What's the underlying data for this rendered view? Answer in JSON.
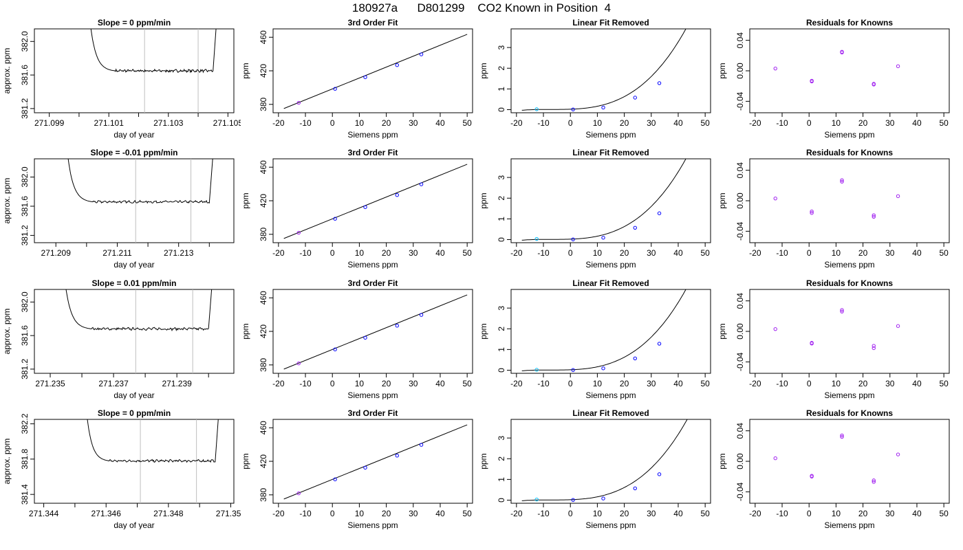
{
  "title": "180927a      D801299    CO2 Known in Position  4",
  "colors": {
    "line": "#000000",
    "vline": "#bebebe",
    "pt_blue": "#0000ff",
    "pt_purple": "#a020f0",
    "pt_cyan": "#00bfff"
  },
  "chart_data": [
    {
      "row": 1,
      "type": "line",
      "title": "Slope =  0  ppm/min",
      "xlabel": "day of year",
      "ylabel": "approx. ppm",
      "xlim": [
        271.0985,
        271.1052
      ],
      "ylim": [
        381.15,
        382.15
      ],
      "xticks": [
        271.099,
        271.1,
        271.101,
        271.102,
        271.103,
        271.104,
        271.105
      ],
      "xticklabels": [
        "271.099",
        "",
        "271.101",
        "",
        "271.103",
        "",
        "271.105"
      ],
      "yticks": [
        381.2,
        381.6,
        382.0
      ],
      "yticklabels": [
        "381.2",
        "381.6",
        "382.0"
      ],
      "vlines": [
        271.1022,
        271.104
      ],
      "trace": {
        "x_start": 271.1004,
        "x_plateau": 271.1012,
        "x_plateau_end": 271.1045,
        "x_end": 271.1047,
        "top": 382.15,
        "level": 381.65,
        "noise": 0.012
      }
    },
    {
      "row": 1,
      "type": "scatter",
      "title": "3rd Order Fit",
      "xlabel": "Siemens ppm",
      "ylabel": "ppm",
      "xlim": [
        -22,
        52
      ],
      "ylim": [
        370,
        470
      ],
      "xticks": [
        -20,
        -10,
        0,
        10,
        20,
        30,
        40,
        50
      ],
      "yticks": [
        380,
        420,
        460
      ],
      "points": {
        "x": [
          -12.5,
          1,
          12.2,
          24,
          33
        ],
        "y": [
          381.8,
          398.5,
          412.4,
          426.8,
          439.6
        ]
      },
      "fit": {
        "x": [
          -18,
          50
        ],
        "y": [
          375,
          463.5
        ]
      }
    },
    {
      "row": 1,
      "type": "scatter",
      "title": "Linear Fit Removed",
      "xlabel": "Siemens ppm",
      "ylabel": "ppm",
      "xlim": [
        -22,
        52
      ],
      "ylim": [
        -0.15,
        3.9
      ],
      "xticks": [
        -20,
        -10,
        0,
        10,
        20,
        30,
        40,
        50
      ],
      "yticks": [
        0,
        1,
        2,
        3
      ],
      "points": {
        "x": [
          -12.5,
          1,
          12.2,
          24,
          33
        ],
        "y": [
          0.02,
          0.01,
          0.1,
          0.58,
          1.28
        ]
      },
      "curve": {
        "x0": -18,
        "x1": 50,
        "c1": 3.14e-05,
        "c0": 0.01,
        "xmin": -7.0
      }
    },
    {
      "row": 1,
      "type": "scatter",
      "title": "Residuals for Knowns",
      "xlabel": "Siemens ppm",
      "ylabel": "ppm",
      "xlim": [
        -22,
        52
      ],
      "ylim": [
        -0.055,
        0.055
      ],
      "xticks": [
        -20,
        -10,
        0,
        10,
        20,
        30,
        40,
        50
      ],
      "yticks": [
        -0.04,
        0.0,
        0.04
      ],
      "yticklabels": [
        "-0.04",
        "0.00",
        "0.04"
      ],
      "points": {
        "x": [
          -12.5,
          1,
          1,
          12.2,
          12.2,
          24,
          24,
          33
        ],
        "y": [
          0.003,
          -0.013,
          -0.014,
          0.025,
          0.024,
          -0.017,
          -0.018,
          0.006
        ]
      }
    },
    {
      "row": 2,
      "type": "line",
      "title": "Slope =  -0.01  ppm/min",
      "xlabel": "day of year",
      "ylabel": "approx. ppm",
      "xlim": [
        271.2083,
        271.2148
      ],
      "ylim": [
        381.1,
        382.25
      ],
      "xticks": [
        271.209,
        271.21,
        271.211,
        271.212,
        271.213,
        271.214
      ],
      "xticklabels": [
        "271.209",
        "",
        "271.211",
        "",
        "271.213",
        ""
      ],
      "yticks": [
        381.2,
        381.6,
        382.0
      ],
      "yticklabels": [
        "381.2",
        "381.6",
        "382.0"
      ],
      "vlines": [
        271.2116,
        271.2134
      ],
      "trace": {
        "x_start": 271.2094,
        "x_plateau": 271.2102,
        "x_plateau_end": 271.214,
        "x_end": 271.2142,
        "top": 382.25,
        "level": 381.66,
        "noise": 0.012
      }
    },
    {
      "row": 2,
      "type": "scatter",
      "title": "3rd Order Fit",
      "xlabel": "Siemens ppm",
      "ylabel": "ppm",
      "xlim": [
        -22,
        52
      ],
      "ylim": [
        370,
        470
      ],
      "xticks": [
        -20,
        -10,
        0,
        10,
        20,
        30,
        40,
        50
      ],
      "yticks": [
        380,
        420,
        460
      ],
      "points": {
        "x": [
          -12.5,
          1,
          12.2,
          24,
          33
        ],
        "y": [
          381.8,
          398.5,
          412.4,
          426.8,
          439.6
        ]
      },
      "fit": {
        "x": [
          -18,
          50
        ],
        "y": [
          375,
          463.5
        ]
      }
    },
    {
      "row": 2,
      "type": "scatter",
      "title": "Linear Fit Removed",
      "xlabel": "Siemens ppm",
      "ylabel": "ppm",
      "xlim": [
        -22,
        52
      ],
      "ylim": [
        -0.15,
        3.9
      ],
      "xticks": [
        -20,
        -10,
        0,
        10,
        20,
        30,
        40,
        50
      ],
      "yticks": [
        0,
        1,
        2,
        3
      ],
      "points": {
        "x": [
          -12.5,
          1,
          12.2,
          24,
          33
        ],
        "y": [
          0.03,
          0.01,
          0.09,
          0.57,
          1.27
        ]
      },
      "curve": {
        "x0": -18,
        "x1": 50,
        "c1": 3.14e-05,
        "c0": 0.01,
        "xmin": -7.0
      }
    },
    {
      "row": 2,
      "type": "scatter",
      "title": "Residuals for Knowns",
      "xlabel": "Siemens ppm",
      "ylabel": "ppm",
      "xlim": [
        -22,
        52
      ],
      "ylim": [
        -0.055,
        0.055
      ],
      "xticks": [
        -20,
        -10,
        0,
        10,
        20,
        30,
        40,
        50
      ],
      "yticks": [
        -0.04,
        0.0,
        0.04
      ],
      "yticklabels": [
        "-0.04",
        "0.00",
        "0.04"
      ],
      "points": {
        "x": [
          -12.5,
          1,
          1,
          12.2,
          12.2,
          24,
          24,
          33
        ],
        "y": [
          0.003,
          -0.014,
          -0.016,
          0.027,
          0.025,
          -0.019,
          -0.021,
          0.006
        ]
      }
    },
    {
      "row": 3,
      "type": "line",
      "title": "Slope =  0.01  ppm/min",
      "xlabel": "day of year",
      "ylabel": "approx. ppm",
      "xlim": [
        271.2345,
        271.2408
      ],
      "ylim": [
        381.15,
        382.15
      ],
      "xticks": [
        271.235,
        271.236,
        271.237,
        271.238,
        271.239,
        271.24
      ],
      "xticklabels": [
        "271.235",
        "",
        "271.237",
        "",
        "271.239",
        ""
      ],
      "yticks": [
        381.2,
        381.6,
        382.0
      ],
      "yticklabels": [
        "381.2",
        "381.6",
        "382.0"
      ],
      "vlines": [
        271.2377,
        271.2395
      ],
      "trace": {
        "x_start": 271.2355,
        "x_plateau": 271.2363,
        "x_plateau_end": 271.24,
        "x_end": 271.2402,
        "top": 382.15,
        "level": 381.68,
        "noise": 0.012
      }
    },
    {
      "row": 3,
      "type": "scatter",
      "title": "3rd Order Fit",
      "xlabel": "Siemens ppm",
      "ylabel": "ppm",
      "xlim": [
        -22,
        52
      ],
      "ylim": [
        370,
        470
      ],
      "xticks": [
        -20,
        -10,
        0,
        10,
        20,
        30,
        40,
        50
      ],
      "yticks": [
        380,
        420,
        460
      ],
      "points": {
        "x": [
          -12.5,
          1,
          12.2,
          24,
          33
        ],
        "y": [
          381.8,
          398.5,
          412.4,
          426.8,
          439.6
        ]
      },
      "fit": {
        "x": [
          -18,
          50
        ],
        "y": [
          375,
          463.5
        ]
      }
    },
    {
      "row": 3,
      "type": "scatter",
      "title": "Linear Fit Removed",
      "xlabel": "Siemens ppm",
      "ylabel": "ppm",
      "xlim": [
        -22,
        52
      ],
      "ylim": [
        -0.15,
        3.9
      ],
      "xticks": [
        -20,
        -10,
        0,
        10,
        20,
        30,
        40,
        50
      ],
      "yticks": [
        0,
        1,
        2,
        3
      ],
      "points": {
        "x": [
          -12.5,
          1,
          12.2,
          24,
          33
        ],
        "y": [
          0.02,
          0.01,
          0.09,
          0.57,
          1.28
        ]
      },
      "curve": {
        "x0": -18,
        "x1": 50,
        "c1": 3.14e-05,
        "c0": 0.01,
        "xmin": -7.0
      }
    },
    {
      "row": 3,
      "type": "scatter",
      "title": "Residuals for Knowns",
      "xlabel": "Siemens ppm",
      "ylabel": "ppm",
      "xlim": [
        -22,
        52
      ],
      "ylim": [
        -0.055,
        0.055
      ],
      "xticks": [
        -20,
        -10,
        0,
        10,
        20,
        30,
        40,
        50
      ],
      "yticks": [
        -0.04,
        0.0,
        0.04
      ],
      "yticklabels": [
        "-0.04",
        "0.00",
        "0.04"
      ],
      "points": {
        "x": [
          -12.5,
          1,
          1,
          12.2,
          12.2,
          24,
          24,
          33
        ],
        "y": [
          0.003,
          -0.015,
          -0.016,
          0.028,
          0.026,
          -0.019,
          -0.022,
          0.007
        ]
      }
    },
    {
      "row": 4,
      "type": "line",
      "title": "Slope =  0  ppm/min",
      "xlabel": "day of year",
      "ylabel": "approx. ppm",
      "xlim": [
        271.3437,
        271.3501
      ],
      "ylim": [
        381.3,
        382.25
      ],
      "xticks": [
        271.344,
        271.345,
        271.346,
        271.347,
        271.348,
        271.349,
        271.35
      ],
      "xticklabels": [
        "271.344",
        "",
        "271.346",
        "",
        "271.348",
        "",
        "271.350"
      ],
      "yticks": [
        381.4,
        381.8,
        382.2
      ],
      "yticklabels": [
        "381.4",
        "381.8",
        "382.2"
      ],
      "vlines": [
        271.3471,
        271.3489
      ],
      "trace": {
        "x_start": 271.3454,
        "x_plateau": 271.3461,
        "x_plateau_end": 271.3495,
        "x_end": 271.3497,
        "top": 382.25,
        "level": 381.78,
        "noise": 0.01
      }
    },
    {
      "row": 4,
      "type": "scatter",
      "title": "3rd Order Fit",
      "xlabel": "Siemens ppm",
      "ylabel": "ppm",
      "xlim": [
        -22,
        52
      ],
      "ylim": [
        370,
        470
      ],
      "xticks": [
        -20,
        -10,
        0,
        10,
        20,
        30,
        40,
        50
      ],
      "yticks": [
        380,
        420,
        460
      ],
      "points": {
        "x": [
          -12.5,
          1,
          12.2,
          24,
          33
        ],
        "y": [
          381.8,
          398.5,
          412.4,
          426.8,
          439.6
        ]
      },
      "fit": {
        "x": [
          -18,
          50
        ],
        "y": [
          375,
          463.5
        ]
      }
    },
    {
      "row": 4,
      "type": "scatter",
      "title": "Linear Fit Removed",
      "xlabel": "Siemens ppm",
      "ylabel": "ppm",
      "xlim": [
        -22,
        52
      ],
      "ylim": [
        -0.15,
        3.9
      ],
      "xticks": [
        -20,
        -10,
        0,
        10,
        20,
        30,
        40,
        50
      ],
      "yticks": [
        0,
        1,
        2,
        3
      ],
      "points": {
        "x": [
          -12.5,
          1,
          12.2,
          24,
          33
        ],
        "y": [
          0.03,
          0.01,
          0.08,
          0.57,
          1.25
        ]
      },
      "curve": {
        "x0": -18,
        "x1": 50,
        "c1": 3.05e-05,
        "c0": 0.01,
        "xmin": -7.0
      }
    },
    {
      "row": 4,
      "type": "scatter",
      "title": "Residuals for Knowns",
      "xlabel": "Siemens ppm",
      "ylabel": "ppm",
      "xlim": [
        -22,
        52
      ],
      "ylim": [
        -0.055,
        0.055
      ],
      "xticks": [
        -20,
        -10,
        0,
        10,
        20,
        30,
        40,
        50
      ],
      "yticks": [
        -0.04,
        0.0,
        0.04
      ],
      "yticklabels": [
        "-0.04",
        "0.00",
        "0.04"
      ],
      "points": {
        "x": [
          -12.5,
          1,
          1,
          12.2,
          12.2,
          24,
          24,
          33
        ],
        "y": [
          0.004,
          -0.019,
          -0.02,
          0.034,
          0.032,
          -0.025,
          -0.027,
          0.009
        ]
      }
    }
  ]
}
